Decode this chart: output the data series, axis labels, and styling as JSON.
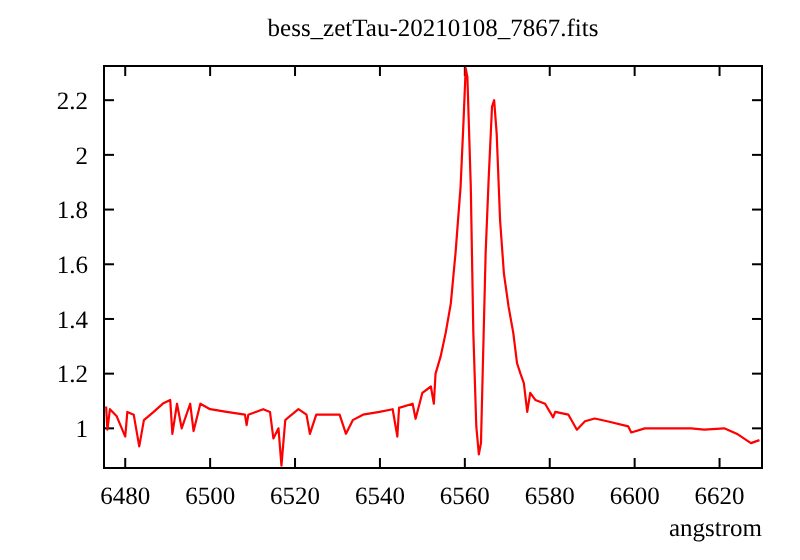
{
  "chart_data": {
    "type": "line",
    "title": "bess_zetTau-20210108_7867.fits",
    "xlabel": "angstrom",
    "color": "#ff0000",
    "x": [
      6475.5,
      6475.8,
      6476.4,
      6478,
      6480,
      6480.5,
      6482,
      6483.3,
      6484.4,
      6486.7,
      6489,
      6490.6,
      6491.1,
      6492.2,
      6493.3,
      6495.3,
      6496.1,
      6497.7,
      6500,
      6503.9,
      6508.2,
      6508.6,
      6509,
      6512.5,
      6514.1,
      6514.9,
      6516.1,
      6516.8,
      6517.7,
      6518.8,
      6520.8,
      6522.7,
      6523.5,
      6525,
      6530.5,
      6532,
      6533.6,
      6536,
      6539.9,
      6543,
      6544.1,
      6544.5,
      6547.7,
      6548.4,
      6550,
      6552,
      6552.7,
      6553.1,
      6554.3,
      6555.5,
      6556.7,
      6557.8,
      6559,
      6559.7,
      6560.2,
      6560.6,
      6561.4,
      6562,
      6562.7,
      6563.3,
      6563.8,
      6564.2,
      6564.9,
      6565.6,
      6566.4,
      6566.9,
      6567.5,
      6568.3,
      6569.2,
      6570.3,
      6571.4,
      6572.3,
      6573.1,
      6573.9,
      6574.7,
      6575.4,
      6576.6,
      6578.9,
      6580.8,
      6581.3,
      6584.4,
      6586.4,
      6588.3,
      6590.6,
      6593.8,
      6598.5,
      6599.2,
      6602.4,
      6607,
      6613.3,
      6616.4,
      6621.1,
      6624.3,
      6627.4,
      6629.4
    ],
    "values": [
      1.08,
      0.995,
      1.07,
      1.044,
      0.97,
      1.06,
      1.05,
      0.934,
      1.03,
      1.06,
      1.092,
      1.104,
      0.98,
      1.09,
      1.0,
      1.09,
      0.99,
      1.09,
      1.07,
      1.06,
      1.05,
      1.012,
      1.05,
      1.07,
      1.06,
      0.963,
      1.0,
      0.864,
      1.03,
      1.045,
      1.07,
      1.05,
      0.98,
      1.05,
      1.05,
      0.98,
      1.03,
      1.05,
      1.06,
      1.07,
      0.97,
      1.075,
      1.09,
      1.035,
      1.13,
      1.153,
      1.09,
      1.2,
      1.263,
      1.35,
      1.457,
      1.64,
      1.884,
      2.127,
      2.317,
      2.285,
      1.884,
      1.35,
      1.007,
      0.905,
      0.946,
      1.2,
      1.64,
      1.908,
      2.176,
      2.2,
      2.078,
      1.761,
      1.567,
      1.445,
      1.35,
      1.238,
      1.2,
      1.165,
      1.06,
      1.13,
      1.104,
      1.09,
      1.04,
      1.06,
      1.05,
      0.995,
      1.026,
      1.036,
      1.025,
      1.007,
      0.985,
      1.0,
      1.0,
      1.0,
      0.995,
      1.0,
      0.978,
      0.946,
      0.957
    ],
    "xlim": [
      6475,
      6630
    ],
    "ylim": [
      0.855,
      2.325
    ],
    "xticks": [
      6480,
      6500,
      6520,
      6540,
      6560,
      6580,
      6600,
      6620
    ],
    "yticks": [
      1,
      1.2,
      1.4,
      1.6,
      1.8,
      2,
      2.2
    ]
  }
}
